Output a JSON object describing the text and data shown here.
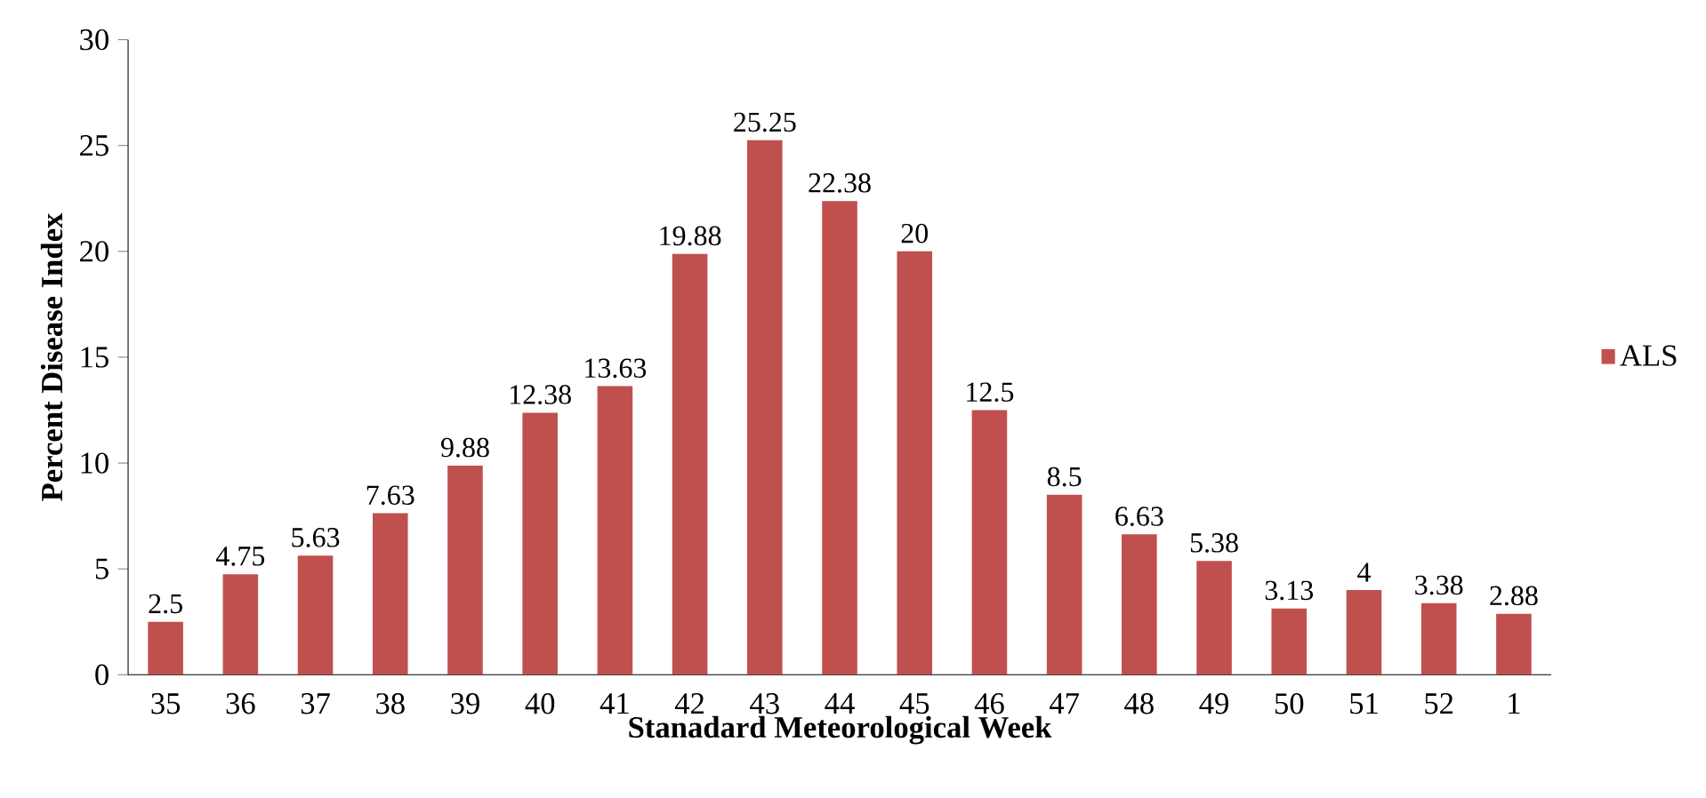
{
  "chart_data": {
    "type": "bar",
    "xlabel": "Stanadard Meteorological Week",
    "ylabel": "Percent Disease Index",
    "categories": [
      "35",
      "36",
      "37",
      "38",
      "39",
      "40",
      "41",
      "42",
      "43",
      "44",
      "45",
      "46",
      "47",
      "48",
      "49",
      "50",
      "51",
      "52",
      "1"
    ],
    "series": [
      {
        "name": "ALS",
        "color": "#c0504d",
        "values": [
          2.5,
          4.75,
          5.63,
          7.63,
          9.88,
          12.38,
          13.63,
          19.88,
          25.25,
          22.38,
          20,
          12.5,
          8.5,
          6.63,
          5.38,
          3.13,
          4,
          3.38,
          2.88
        ]
      }
    ],
    "ylim": [
      0,
      30
    ],
    "yticks": [
      0,
      5,
      10,
      15,
      20,
      25,
      30
    ],
    "data_labels": true,
    "legend": "right",
    "grid": false
  }
}
